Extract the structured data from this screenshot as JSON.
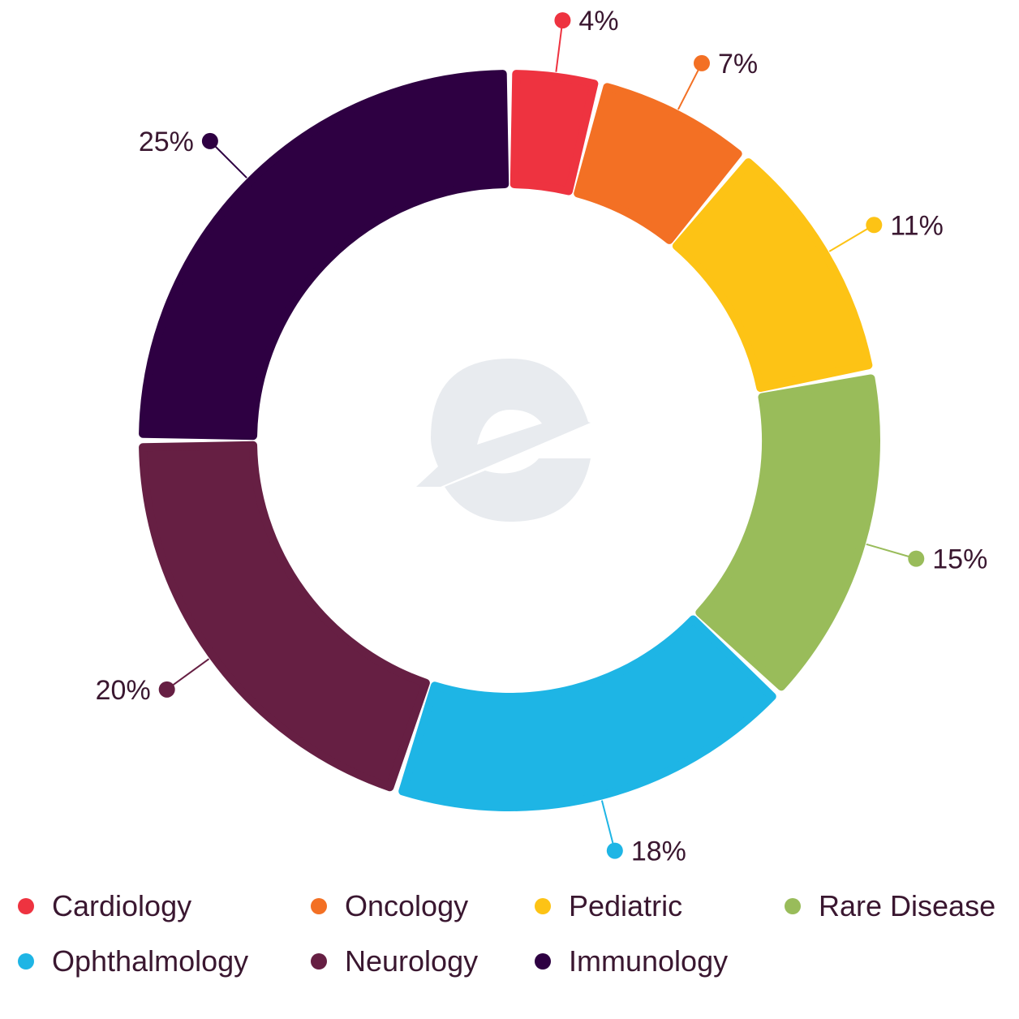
{
  "chart_data": {
    "type": "donut",
    "title": "",
    "slices": [
      {
        "label": "Cardiology",
        "value": 4,
        "display": "4%",
        "color": "#ee3340"
      },
      {
        "label": "Oncology",
        "value": 7,
        "display": "7%",
        "color": "#f37024"
      },
      {
        "label": "Pediatric",
        "value": 11,
        "display": "11%",
        "color": "#fdc315"
      },
      {
        "label": "Rare Disease",
        "value": 15,
        "display": "15%",
        "color": "#99bc5a"
      },
      {
        "label": "Ophthalmology",
        "value": 18,
        "display": "18%",
        "color": "#1eb5e5"
      },
      {
        "label": "Neurology",
        "value": 20,
        "display": "20%",
        "color": "#661f43"
      },
      {
        "label": "Immunology",
        "value": 25,
        "display": "25%",
        "color": "#2e0042"
      }
    ],
    "legend_position": "bottom",
    "center_icon": "logo-e-watermark"
  },
  "legend": {
    "items": [
      {
        "label": "Cardiology",
        "color": "#ee3340"
      },
      {
        "label": "Oncology",
        "color": "#f37024"
      },
      {
        "label": "Pediatric",
        "color": "#fdc315"
      },
      {
        "label": "Rare Disease",
        "color": "#99bc5a"
      },
      {
        "label": "Ophthalmology",
        "color": "#1eb5e5"
      },
      {
        "label": "Neurology",
        "color": "#661f43"
      },
      {
        "label": "Immunology",
        "color": "#2e0042"
      }
    ]
  }
}
